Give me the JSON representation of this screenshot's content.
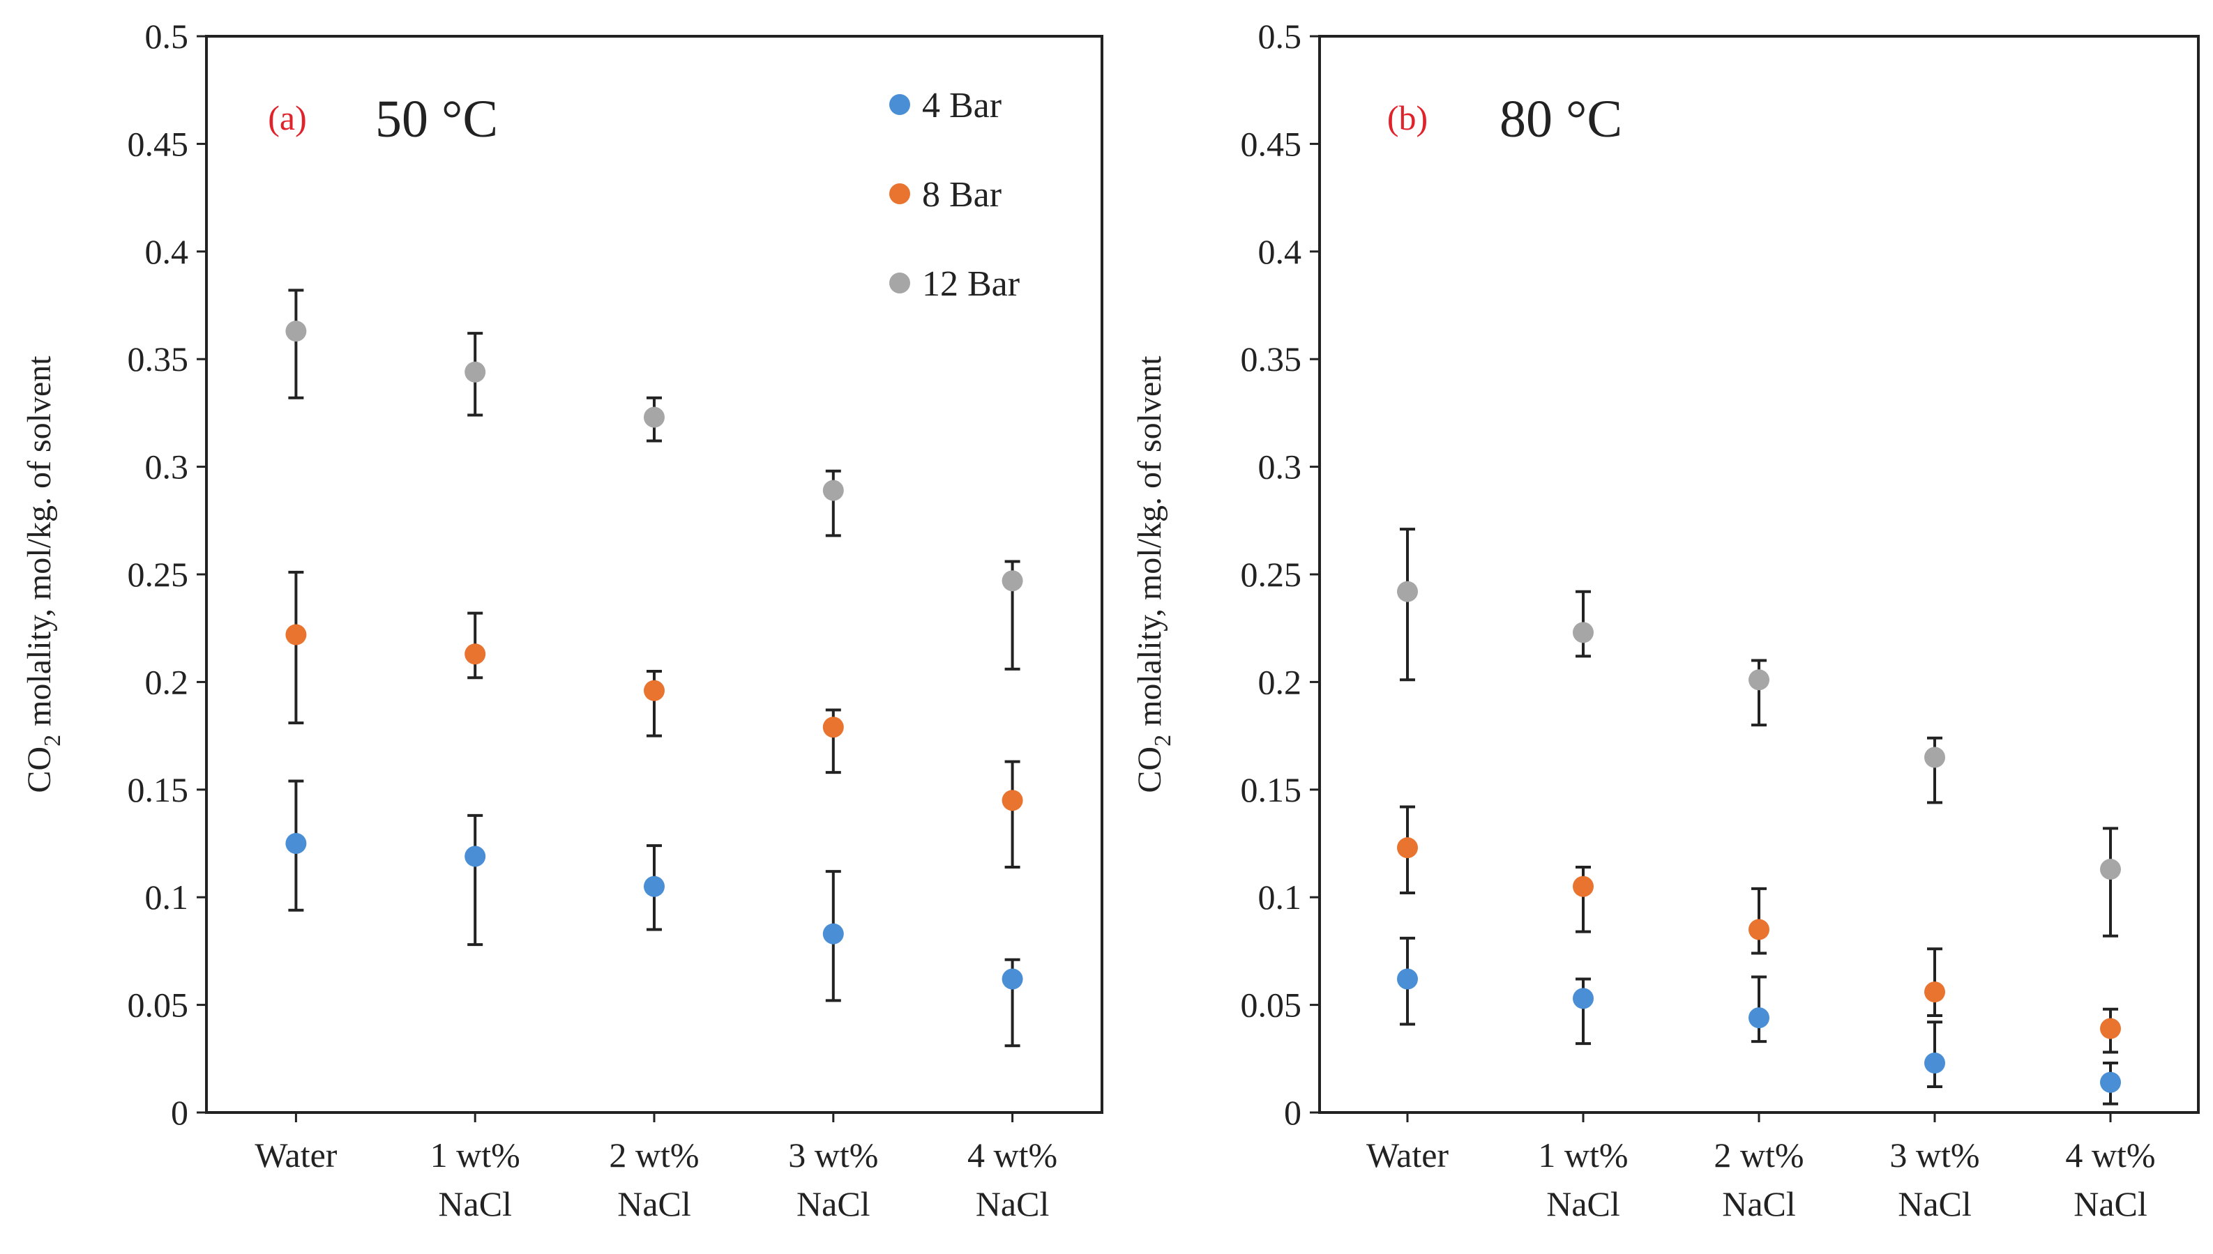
{
  "colors": {
    "4 Bar": "#4a8fd6",
    "8 Bar": "#e87430",
    "12 Bar": "#a6a6a6",
    "panel_tag": "#e0232b",
    "axis": "#222222",
    "errorbar": "#222222"
  },
  "legend": {
    "placement": "top-right of panel (a)",
    "entries": [
      "4 Bar",
      "8 Bar",
      "12 Bar"
    ]
  },
  "chart_data": [
    {
      "type": "scatter",
      "panel_tag": "(a)",
      "temperature": "50 °C",
      "ylabel_main": "CO",
      "ylabel_sub": "2",
      "ylabel_rest": " molality,  mol/kg. of solvent",
      "xlabel": "",
      "ylim": [
        0,
        0.5
      ],
      "yticks": [
        "0",
        "0.05",
        "0.1",
        "0.15",
        "0.2",
        "0.25",
        "0.3",
        "0.35",
        "0.4",
        "0.45",
        "0.5"
      ],
      "categories": [
        [
          "Water"
        ],
        [
          "1 wt%",
          "NaCl"
        ],
        [
          "2 wt%",
          "NaCl"
        ],
        [
          "3 wt%",
          "NaCl"
        ],
        [
          "4 wt%",
          "NaCl"
        ]
      ],
      "grid": false,
      "series": [
        {
          "name": "4 Bar",
          "values": [
            0.125,
            0.119,
            0.105,
            0.083,
            0.062
          ],
          "err_low": [
            0.094,
            0.078,
            0.085,
            0.052,
            0.031
          ],
          "err_high": [
            0.154,
            0.138,
            0.124,
            0.112,
            0.071
          ]
        },
        {
          "name": "8 Bar",
          "values": [
            0.222,
            0.213,
            0.196,
            0.179,
            0.145
          ],
          "err_low": [
            0.181,
            0.202,
            0.175,
            0.158,
            0.114
          ],
          "err_high": [
            0.251,
            0.232,
            0.205,
            0.187,
            0.163
          ]
        },
        {
          "name": "12 Bar",
          "values": [
            0.363,
            0.344,
            0.323,
            0.289,
            0.247
          ],
          "err_low": [
            0.332,
            0.324,
            0.312,
            0.268,
            0.206
          ],
          "err_high": [
            0.382,
            0.362,
            0.332,
            0.298,
            0.256
          ]
        }
      ]
    },
    {
      "type": "scatter",
      "panel_tag": "(b)",
      "temperature": "80 °C",
      "ylabel_main": "CO",
      "ylabel_sub": "2",
      "ylabel_rest": " molality,  mol/kg. of solvent",
      "xlabel": "",
      "ylim": [
        0,
        0.5
      ],
      "yticks": [
        "0",
        "0.05",
        "0.1",
        "0.15",
        "0.2",
        "0.25",
        "0.3",
        "0.35",
        "0.4",
        "0.45",
        "0.5"
      ],
      "categories": [
        [
          "Water"
        ],
        [
          "1 wt%",
          "NaCl"
        ],
        [
          "2 wt%",
          "NaCl"
        ],
        [
          "3 wt%",
          "NaCl"
        ],
        [
          "4 wt%",
          "NaCl"
        ]
      ],
      "grid": false,
      "series": [
        {
          "name": "4 Bar",
          "values": [
            0.062,
            0.053,
            0.044,
            0.023,
            0.014
          ],
          "err_low": [
            0.041,
            0.032,
            0.033,
            0.012,
            0.004
          ],
          "err_high": [
            0.081,
            0.062,
            0.063,
            0.042,
            0.023
          ]
        },
        {
          "name": "8 Bar",
          "values": [
            0.123,
            0.105,
            0.085,
            0.056,
            0.039
          ],
          "err_low": [
            0.102,
            0.084,
            0.074,
            0.045,
            0.028
          ],
          "err_high": [
            0.142,
            0.114,
            0.104,
            0.076,
            0.048
          ]
        },
        {
          "name": "12 Bar",
          "values": [
            0.242,
            0.223,
            0.201,
            0.165,
            0.113
          ],
          "err_low": [
            0.201,
            0.212,
            0.18,
            0.144,
            0.082
          ],
          "err_high": [
            0.271,
            0.242,
            0.21,
            0.174,
            0.132
          ]
        }
      ]
    }
  ]
}
